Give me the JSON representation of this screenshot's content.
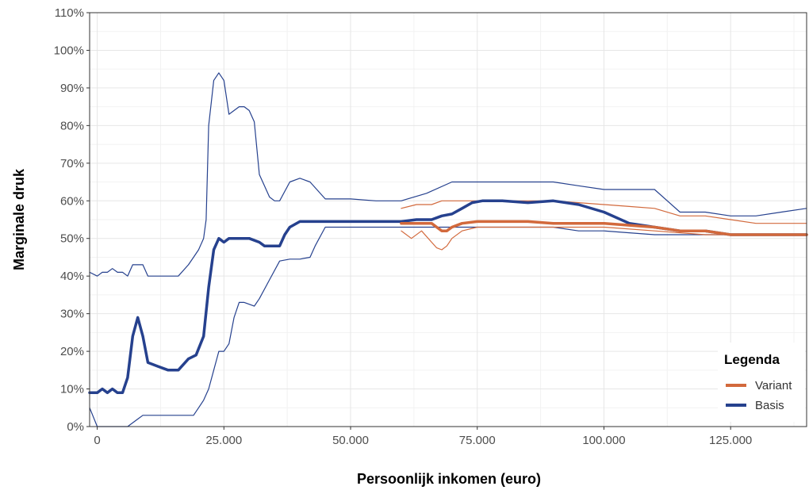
{
  "chart_data": {
    "type": "line",
    "title": "",
    "xlabel": "Persoonlijk inkomen (euro)",
    "ylabel": "Marginale druk",
    "xlim": [
      -1500,
      140000
    ],
    "ylim": [
      0,
      110
    ],
    "x_ticks": [
      0,
      25000,
      50000,
      75000,
      100000,
      125000
    ],
    "x_tick_labels": [
      "0",
      "25.000",
      "50.000",
      "75.000",
      "100.000",
      "125.000"
    ],
    "y_ticks": [
      0,
      10,
      20,
      30,
      40,
      50,
      60,
      70,
      80,
      90,
      100,
      110
    ],
    "y_tick_labels": [
      "0%",
      "10%",
      "20%",
      "30%",
      "40%",
      "50%",
      "60%",
      "70%",
      "80%",
      "90%",
      "100%",
      "110%"
    ],
    "grid": true,
    "legend": {
      "title": "Legenda",
      "position": "bottom-right",
      "entries": [
        {
          "label": "Variant",
          "color": "#d2693c"
        },
        {
          "label": "Basis",
          "color": "#26418e"
        }
      ]
    },
    "series": [
      {
        "name": "Basis",
        "role": "median",
        "color": "#26418e",
        "x": [
          -1500,
          0,
          1000,
          2000,
          3000,
          4000,
          5000,
          6000,
          7000,
          8000,
          9000,
          10000,
          12000,
          14000,
          16000,
          18000,
          19500,
          21000,
          22000,
          23000,
          24000,
          25000,
          26000,
          28000,
          30000,
          32000,
          33000,
          35000,
          36000,
          37000,
          38000,
          40000,
          45000,
          50000,
          55000,
          60000,
          63000,
          66000,
          68000,
          70000,
          72000,
          74000,
          76000,
          80000,
          85000,
          90000,
          95000,
          100000,
          105000,
          110000,
          115000,
          120000,
          125000,
          130000,
          135000,
          140000
        ],
        "y": [
          9,
          9,
          10,
          9,
          10,
          9,
          9,
          13,
          24,
          29,
          24,
          17,
          16,
          15,
          15,
          18,
          19,
          24,
          37,
          47,
          50,
          49,
          50,
          50,
          50,
          49,
          48,
          48,
          48,
          51,
          53,
          54.5,
          54.5,
          54.5,
          54.5,
          54.5,
          55,
          55,
          56,
          56.5,
          58,
          59.5,
          60,
          60,
          59.5,
          60,
          59,
          57,
          54,
          53,
          52,
          52,
          51,
          51,
          51,
          51
        ]
      },
      {
        "name": "Basis",
        "role": "lower bound",
        "color": "#26418e",
        "x": [
          -1500,
          0,
          1000,
          2000,
          4000,
          6000,
          8000,
          9000,
          12000,
          16000,
          19000,
          20000,
          21000,
          22000,
          23000,
          24000,
          25000,
          26000,
          27000,
          28000,
          29000,
          31000,
          32000,
          34000,
          36000,
          38000,
          40000,
          42000,
          43000,
          45000,
          50000,
          55000,
          60000,
          62000,
          65000,
          70000,
          80000,
          90000,
          95000,
          100000,
          105000,
          110000,
          115000,
          120000,
          125000,
          130000,
          135000,
          140000
        ],
        "y": [
          5,
          0,
          0,
          0,
          0,
          0,
          2,
          3,
          3,
          3,
          3,
          5,
          7,
          10,
          15,
          20,
          20,
          22,
          29,
          33,
          33,
          32,
          34,
          39,
          44,
          44.5,
          44.5,
          45,
          48,
          53,
          53,
          53,
          53,
          53,
          53,
          53,
          53,
          53,
          52,
          52,
          51.5,
          51,
          51,
          51,
          51,
          51,
          51,
          51
        ]
      },
      {
        "name": "Basis",
        "role": "upper bound",
        "color": "#26418e",
        "x": [
          -1500,
          0,
          1000,
          2000,
          3000,
          4000,
          5000,
          6000,
          7000,
          8000,
          9000,
          10000,
          12000,
          15000,
          16000,
          18000,
          19000,
          20000,
          21000,
          21500,
          22000,
          23000,
          24000,
          25000,
          26000,
          27000,
          28000,
          29000,
          30000,
          31000,
          32000,
          33000,
          34000,
          35000,
          36000,
          38000,
          40000,
          42000,
          45000,
          50000,
          55000,
          60000,
          65000,
          70000,
          75000,
          80000,
          85000,
          90000,
          95000,
          100000,
          105000,
          110000,
          115000,
          120000,
          125000,
          130000,
          135000,
          140000
        ],
        "y": [
          41,
          40,
          41,
          41,
          42,
          41,
          41,
          40,
          43,
          43,
          43,
          40,
          40,
          40,
          40,
          43,
          45,
          47,
          50,
          55,
          80,
          92,
          94,
          92,
          83,
          84,
          85,
          85,
          84,
          81,
          67,
          64,
          61,
          60,
          60,
          65,
          66,
          65,
          60.5,
          60.5,
          60,
          60,
          62,
          65,
          65,
          65,
          65,
          65,
          64,
          63,
          63,
          63,
          57,
          57,
          56,
          56,
          57,
          58
        ]
      },
      {
        "name": "Variant",
        "role": "median",
        "color": "#d2693c",
        "x": [
          60000,
          63000,
          66000,
          67000,
          68000,
          69000,
          70000,
          72000,
          75000,
          80000,
          85000,
          90000,
          95000,
          100000,
          105000,
          110000,
          115000,
          120000,
          125000,
          130000,
          135000,
          140000
        ],
        "y": [
          54,
          54,
          54,
          53,
          52,
          52,
          53,
          54,
          54.5,
          54.5,
          54.5,
          54,
          54,
          54,
          53.5,
          53,
          52,
          52,
          51,
          51,
          51,
          51
        ]
      },
      {
        "name": "Variant",
        "role": "lower bound",
        "color": "#d2693c",
        "x": [
          60000,
          62000,
          64000,
          66000,
          67000,
          68000,
          69000,
          70000,
          72000,
          75000,
          80000,
          90000,
          100000,
          110000,
          120000,
          130000,
          140000
        ],
        "y": [
          52,
          50,
          52,
          49,
          47.5,
          47,
          48,
          50,
          52,
          53,
          53,
          53,
          53,
          52,
          51,
          51,
          51
        ]
      },
      {
        "name": "Variant",
        "role": "upper bound",
        "color": "#d2693c",
        "x": [
          60000,
          63000,
          66000,
          68000,
          70000,
          72000,
          75000,
          80000,
          85000,
          90000,
          95000,
          100000,
          105000,
          110000,
          115000,
          120000,
          125000,
          130000,
          135000,
          140000
        ],
        "y": [
          58,
          59,
          59,
          60,
          60,
          60,
          60,
          60,
          60,
          60,
          59.5,
          59,
          58.5,
          58,
          56,
          56,
          55,
          54,
          54,
          54
        ]
      }
    ]
  }
}
